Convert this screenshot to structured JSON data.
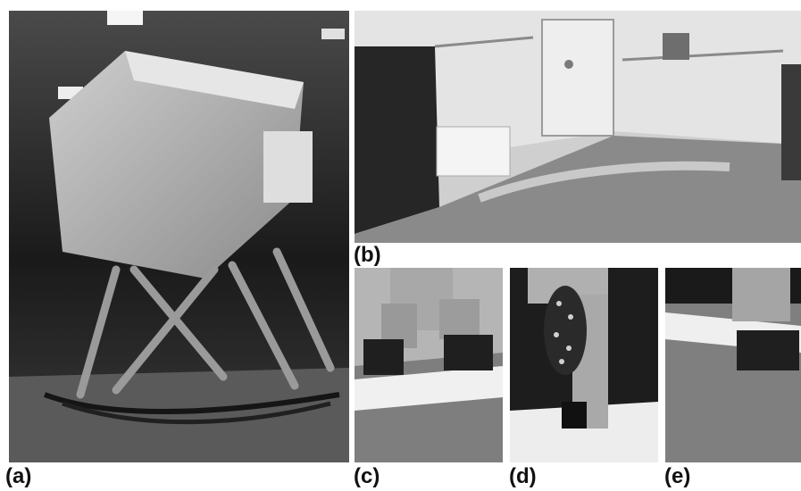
{
  "figure": {
    "panels": [
      {
        "id": "a",
        "label": "(a)",
        "depicts": "motion-base flight simulator cab"
      },
      {
        "id": "b",
        "label": "(b)",
        "depicts": "simulator interior room with icy floor"
      },
      {
        "id": "c",
        "label": "(c)",
        "depicts": "boots walking on icy floor"
      },
      {
        "id": "d",
        "label": "(d)",
        "depicts": "boot sole with ice cleats"
      },
      {
        "id": "e",
        "label": "(e)",
        "depicts": "boot stepping on ice"
      }
    ],
    "palette": {
      "dark": "#1e1e1e",
      "mid": "#6e6e6e",
      "light": "#d8d8d8",
      "snow": "#f2f2f2"
    }
  }
}
